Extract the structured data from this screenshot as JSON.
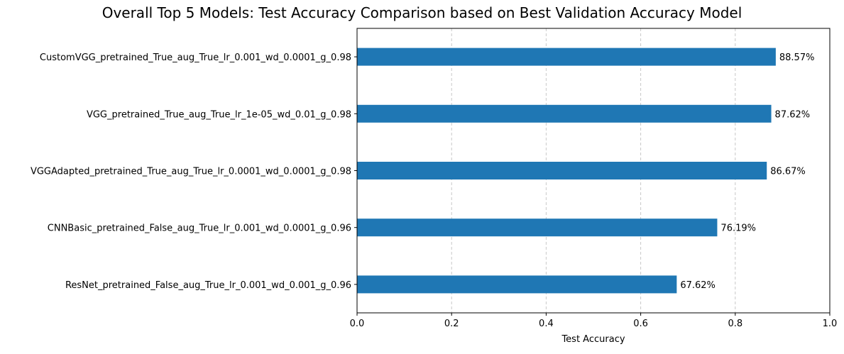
{
  "chart_data": {
    "type": "bar",
    "orientation": "horizontal",
    "title": "Overall Top 5 Models: Test Accuracy Comparison based on Best Validation Accuracy Model",
    "xlabel": "Test Accuracy",
    "ylabel": "",
    "xlim": [
      0,
      1
    ],
    "xticks": [
      "0.0",
      "0.2",
      "0.4",
      "0.6",
      "0.8",
      "1.0"
    ],
    "xtick_values": [
      0,
      0.2,
      0.4,
      0.6,
      0.8,
      1.0
    ],
    "grid": "x-axis dashed",
    "bar_color": "#1f77b4",
    "categories": [
      "CustomVGG_pretrained_True_aug_True_lr_0.001_wd_0.0001_g_0.98",
      "VGG_pretrained_True_aug_True_lr_1e-05_wd_0.01_g_0.98",
      "VGGAdapted_pretrained_True_aug_True_lr_0.0001_wd_0.0001_g_0.98",
      "CNNBasic_pretrained_False_aug_True_lr_0.001_wd_0.0001_g_0.96",
      "ResNet_pretrained_False_aug_True_lr_0.001_wd_0.001_g_0.96"
    ],
    "values": [
      0.8857,
      0.8762,
      0.8667,
      0.7619,
      0.6762
    ],
    "data_labels": [
      "88.57%",
      "87.62%",
      "86.67%",
      "76.19%",
      "67.62%"
    ]
  }
}
